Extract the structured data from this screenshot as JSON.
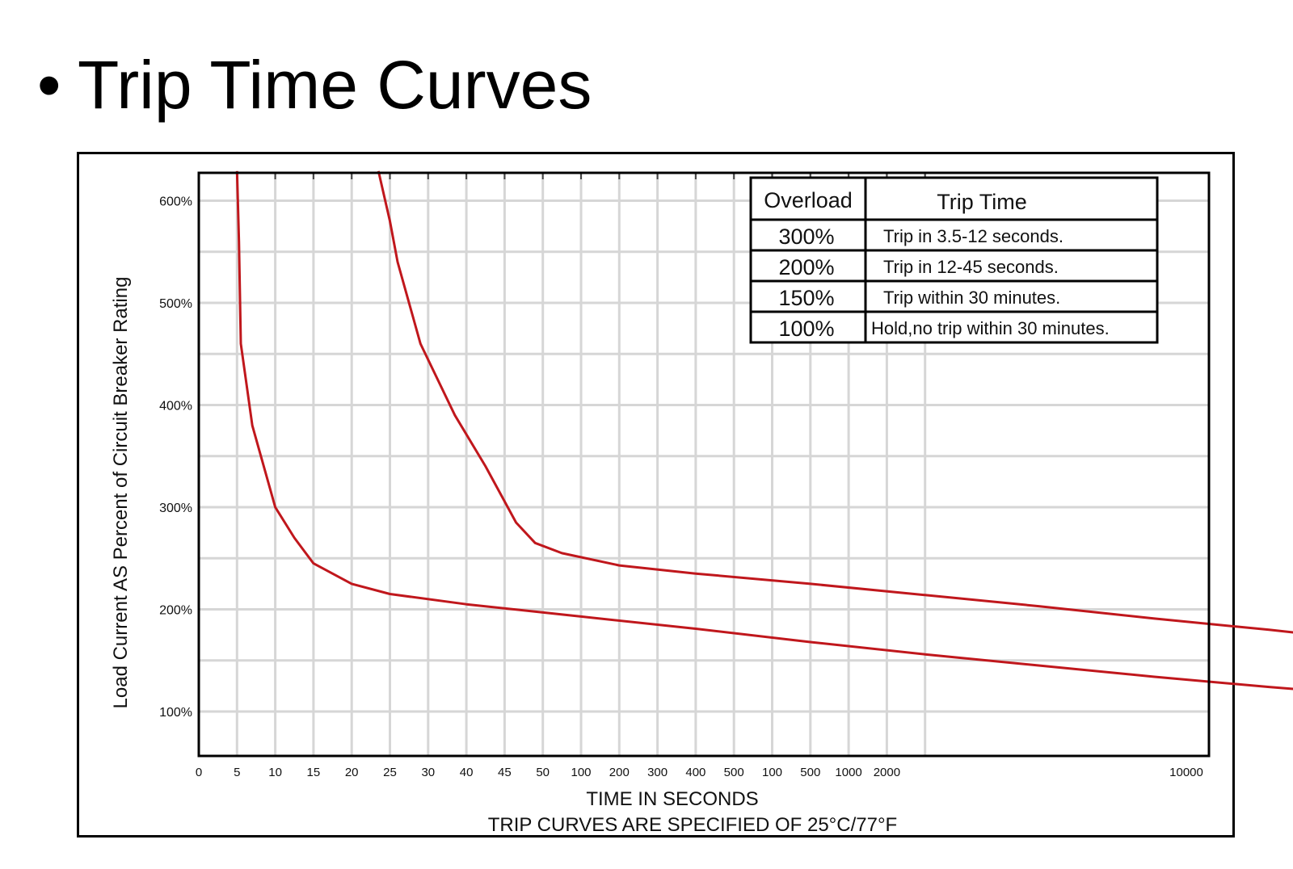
{
  "slide": {
    "bullet": "•",
    "title": "Trip Time Curves"
  },
  "chart_data": {
    "type": "line",
    "title": "",
    "xlabel": "TIME IN SECONDS",
    "xlabel_note": "TRIP CURVES ARE SPECIFIED OF 25°C/77°F",
    "ylabel": "Load Current AS Percent of Circuit Breaker Rating",
    "x_scale": "categorical",
    "x_ticks": [
      "0",
      "5",
      "10",
      "15",
      "20",
      "25",
      "30",
      "40",
      "45",
      "50",
      "100",
      "200",
      "300",
      "400",
      "500",
      "100",
      "500",
      "1000",
      "2000",
      "10000"
    ],
    "y_ticks": [
      "100%",
      "200%",
      "300%",
      "400%",
      "500%",
      "600%"
    ],
    "ylim": [
      57,
      629
    ],
    "grid": true,
    "legend": "none",
    "line_color": "#c0171c",
    "series": [
      {
        "points": [
          [
            1.0,
            629
          ],
          [
            1.05,
            560
          ],
          [
            1.1,
            460
          ],
          [
            1.4,
            380
          ],
          [
            2.0,
            300
          ],
          [
            2.5,
            270
          ],
          [
            3.0,
            245
          ],
          [
            4.0,
            225
          ],
          [
            5.0,
            215
          ],
          [
            7.0,
            205
          ],
          [
            10.0,
            193
          ],
          [
            13.0,
            181
          ],
          [
            16.0,
            168
          ],
          [
            19.0,
            156
          ],
          [
            22.0,
            145
          ],
          [
            25.0,
            134
          ],
          [
            28.0,
            124
          ],
          [
            30.0,
            118
          ],
          [
            32.0,
            113
          ],
          [
            35.0,
            106
          ],
          [
            39.0,
            103
          ],
          [
            41.2,
            103
          ]
        ]
      },
      {
        "points": [
          [
            4.7,
            629
          ],
          [
            5.0,
            580
          ],
          [
            5.2,
            540
          ],
          [
            5.8,
            460
          ],
          [
            6.7,
            390
          ],
          [
            7.5,
            340
          ],
          [
            8.3,
            285
          ],
          [
            8.8,
            265
          ],
          [
            9.5,
            255
          ],
          [
            11.0,
            243
          ],
          [
            13.0,
            235
          ],
          [
            16.0,
            225
          ],
          [
            19.0,
            214
          ],
          [
            22.0,
            203
          ],
          [
            25.0,
            191
          ],
          [
            28.0,
            180
          ],
          [
            31.0,
            168
          ],
          [
            34.0,
            157
          ],
          [
            38.0,
            149
          ],
          [
            41.2,
            145
          ]
        ]
      }
    ],
    "table": {
      "headers": [
        "Overload",
        "Trip Time"
      ],
      "rows": [
        {
          "overload": "300%",
          "trip_time": "Trip in 3.5-12 seconds."
        },
        {
          "overload": "200%",
          "trip_time": "Trip in 12-45 seconds."
        },
        {
          "overload": "150%",
          "trip_time": "Trip within 30 minutes."
        },
        {
          "overload": "100%",
          "trip_time": "Hold,no trip within 30 minutes."
        }
      ]
    }
  }
}
